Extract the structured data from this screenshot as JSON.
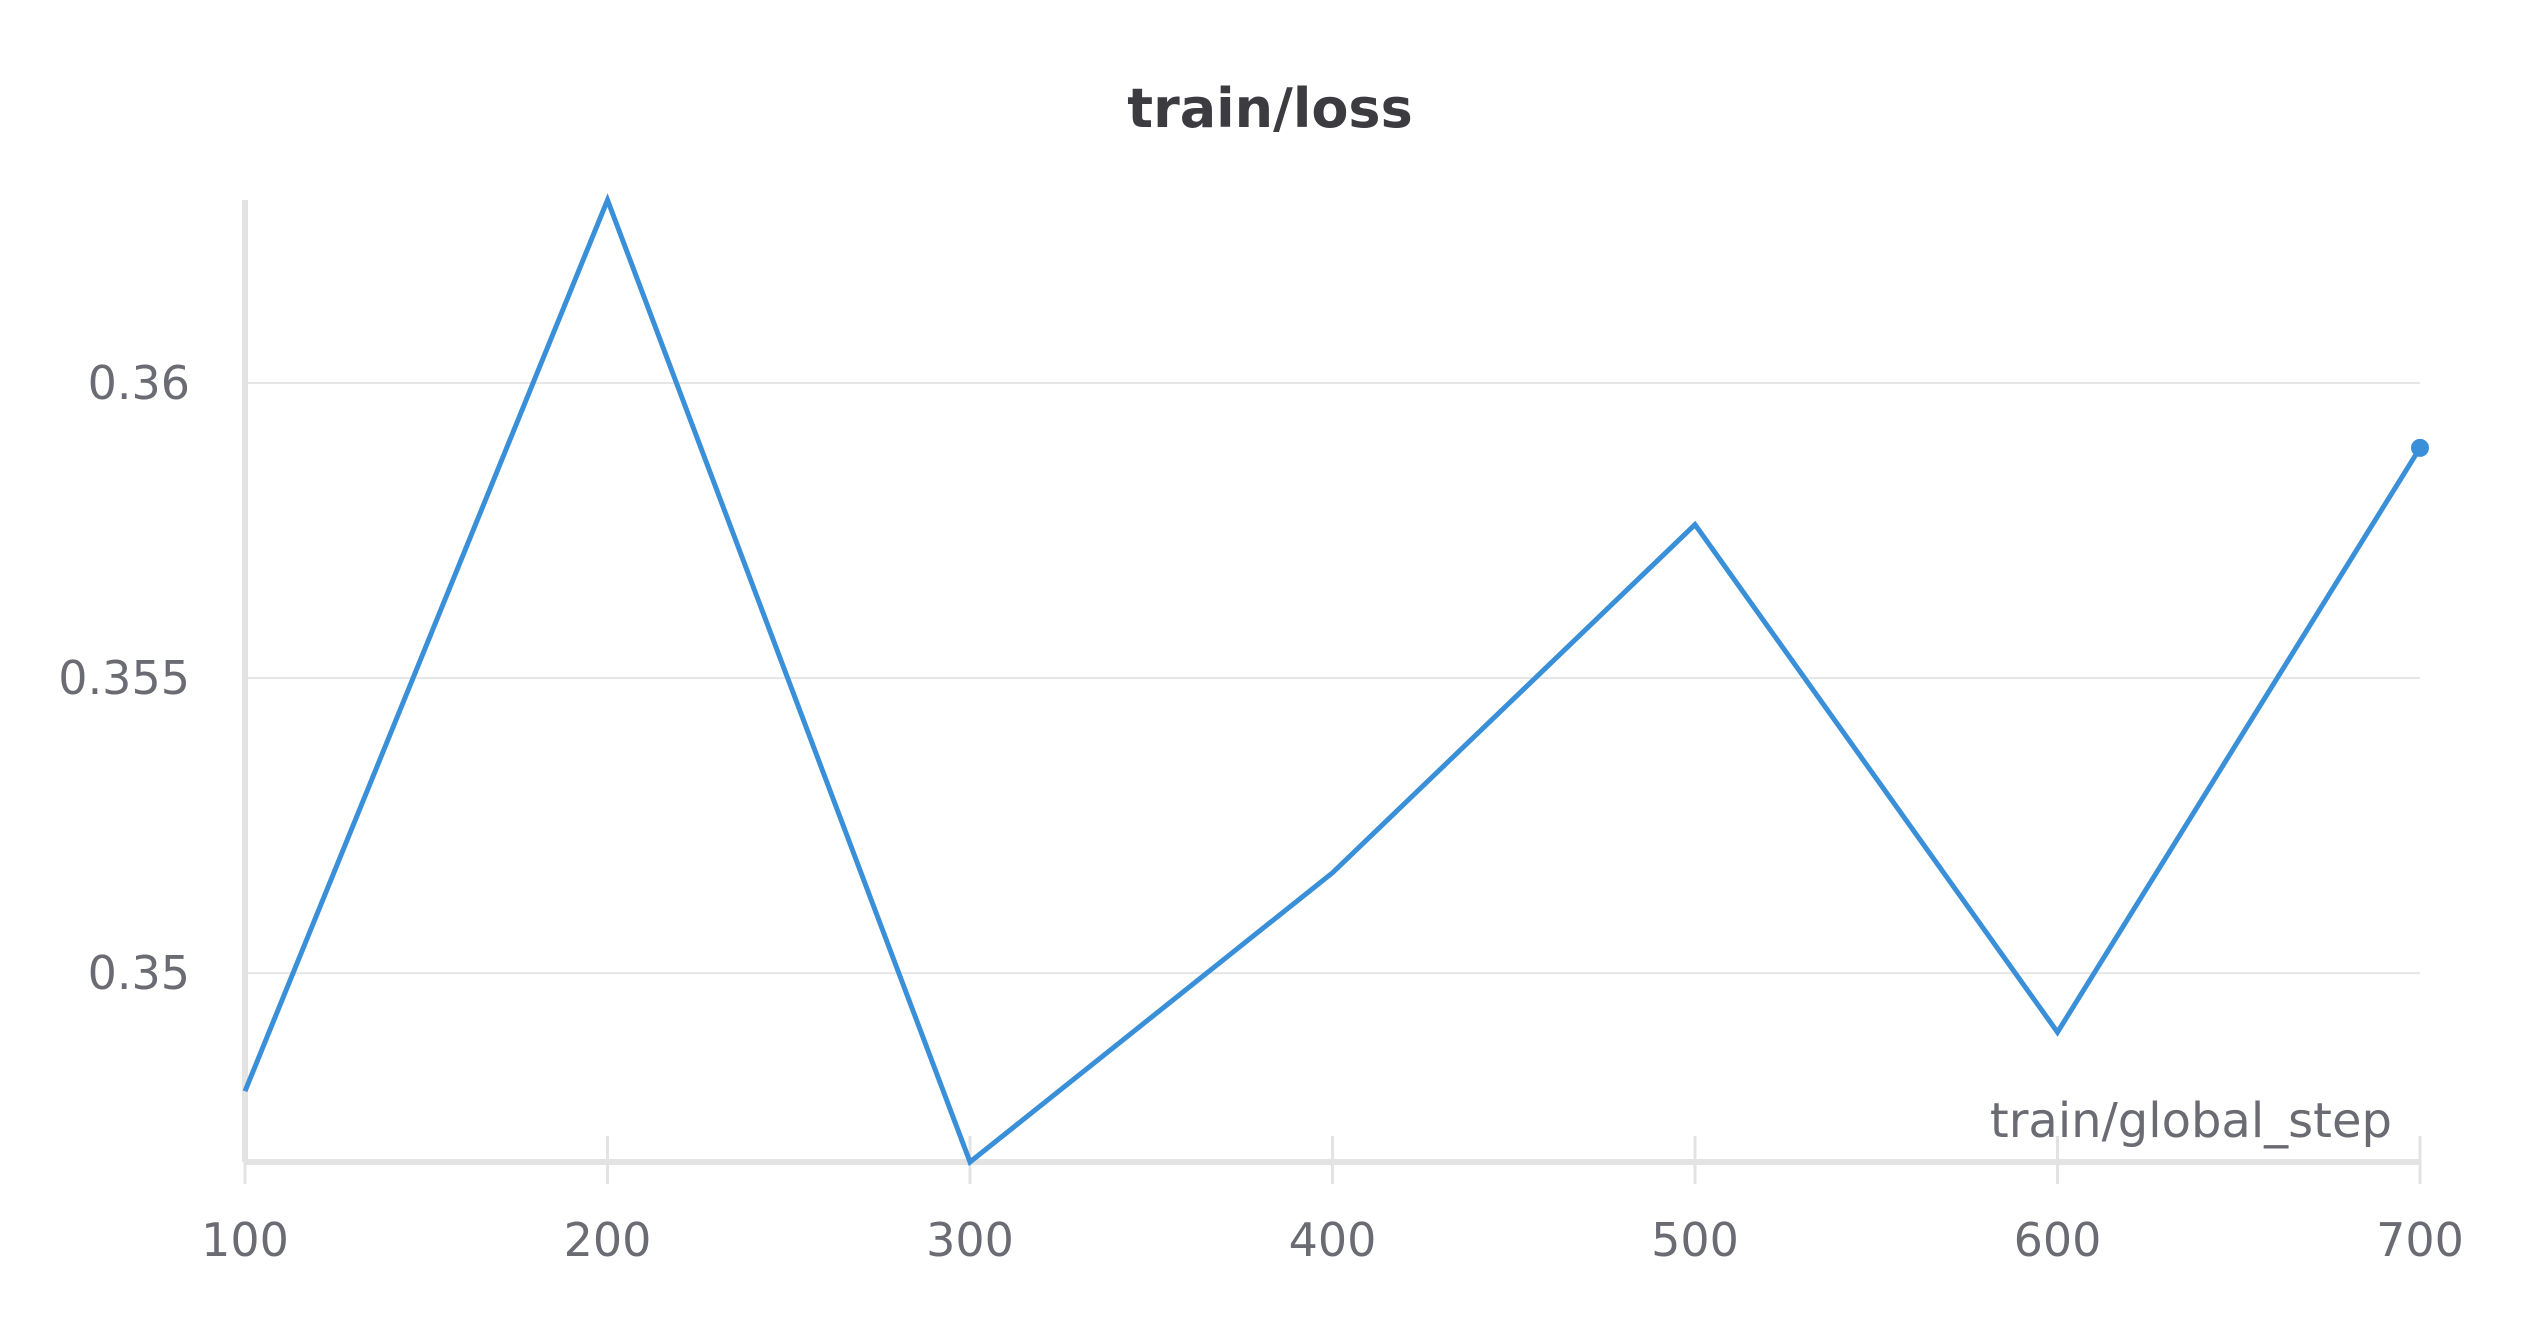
{
  "chart_data": {
    "type": "line",
    "title": "train/loss",
    "xlabel": "train/global_step",
    "ylabel": "",
    "x": [
      100,
      200,
      300,
      400,
      500,
      600,
      700
    ],
    "series": [
      {
        "values": [
          0.348,
          0.3631,
          0.3468,
          0.3517,
          0.3576,
          0.349,
          0.3589
        ],
        "color": "#3a8fd9"
      }
    ],
    "xlim": [
      100,
      700
    ],
    "ylim": [
      0.3468,
      0.3631
    ],
    "x_ticks": [
      100,
      200,
      300,
      400,
      500,
      600,
      700
    ],
    "y_ticks": [
      0.35,
      0.355,
      0.36
    ],
    "x_tick_labels": [
      "100",
      "200",
      "300",
      "400",
      "500",
      "600",
      "700"
    ],
    "y_tick_labels": [
      "0.35",
      "0.355",
      "0.36"
    ],
    "grid": true,
    "legend": "none",
    "colors": {
      "line": "#3a8fd9",
      "grid": "#e6e6e6",
      "axis": "#e3e3e3",
      "text": "#6b6b73",
      "title": "#3b3b40"
    }
  }
}
